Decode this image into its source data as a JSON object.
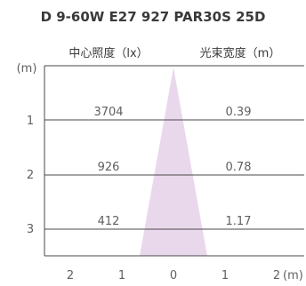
{
  "title": "D 9-60W E27 927 PAR30S 25D",
  "headers": {
    "illuminance": "中心照度（lx）",
    "beam_width": "光束宽度（m）"
  },
  "y_axis": {
    "unit": "(m)",
    "ticks": [
      "1",
      "2",
      "3"
    ]
  },
  "x_axis": {
    "ticks": [
      "2",
      "1",
      "0",
      "1",
      "2"
    ],
    "unit": "(m)"
  },
  "rows": [
    {
      "distance": "1",
      "illuminance": "3704",
      "beam_width": "0.39"
    },
    {
      "distance": "2",
      "illuminance": "926",
      "beam_width": "0.78"
    },
    {
      "distance": "3",
      "illuminance": "412",
      "beam_width": "1.17"
    }
  ],
  "colors": {
    "beam": "#e9d8ec",
    "line": "#4a4a4a",
    "text": "#3a3a3a"
  }
}
